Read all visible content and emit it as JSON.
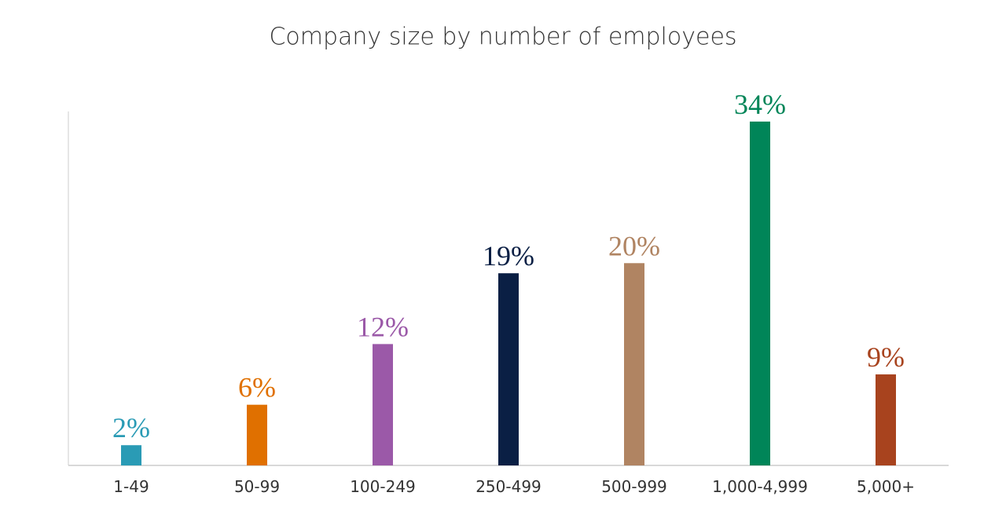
{
  "chart_data": {
    "type": "bar",
    "title": "Company size by number of employees",
    "categories": [
      "1-49",
      "50-99",
      "100-249",
      "250-499",
      "500-999",
      "1,000-4,999",
      "5,000+"
    ],
    "values": [
      2,
      6,
      12,
      19,
      20,
      34,
      9
    ],
    "value_labels": [
      "2%",
      "6%",
      "12%",
      "19%",
      "20%",
      "34%",
      "9%"
    ],
    "colors": [
      "#2a9bb5",
      "#e07000",
      "#9b59a8",
      "#0a1f44",
      "#b08462",
      "#008558",
      "#a8431e"
    ],
    "ylim": [
      0,
      35
    ]
  }
}
